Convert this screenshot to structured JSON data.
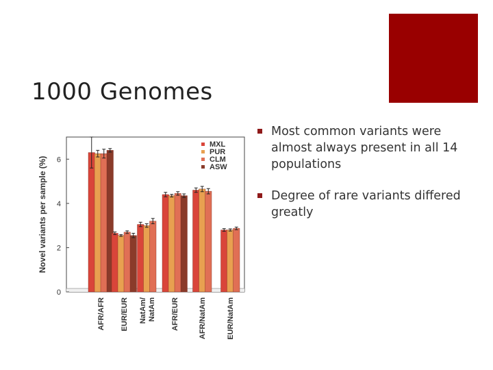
{
  "slide": {
    "title": "1000 Genomes",
    "accent_color": "#990000",
    "bullets": [
      {
        "text": "Most common variants were almost always present in all 14 populations"
      },
      {
        "text": "Degree of rare variants differed greatly"
      }
    ]
  },
  "chart_data": {
    "type": "bar",
    "title": "",
    "xlabel": "",
    "ylabel": "Novel variants per sample (%)",
    "ylim": [
      0,
      7
    ],
    "yticks": [
      0,
      2,
      4,
      6
    ],
    "grid": false,
    "legend_position": "top-right",
    "categories": [
      "AFR/AFR",
      "EUR/EUR",
      "NatAm/\nNatAm",
      "AFR/EUR",
      "AFR/NatAm",
      "EUR/NatAm"
    ],
    "series": [
      {
        "name": "MXL",
        "color": "#d9453a",
        "values": [
          6.3,
          2.65,
          3.05,
          4.4,
          4.6,
          2.8
        ],
        "errors": [
          0.7,
          0.06,
          0.1,
          0.1,
          0.1,
          0.06
        ]
      },
      {
        "name": "PUR",
        "color": "#e8a050",
        "values": [
          6.25,
          2.55,
          3.0,
          4.35,
          4.65,
          2.8
        ],
        "errors": [
          0.15,
          0.04,
          0.08,
          0.06,
          0.12,
          0.05
        ]
      },
      {
        "name": "CLM",
        "color": "#e06f55",
        "values": [
          6.25,
          2.7,
          3.2,
          4.45,
          4.55,
          2.87
        ],
        "errors": [
          0.2,
          0.06,
          0.12,
          0.08,
          0.12,
          0.06
        ]
      },
      {
        "name": "ASW",
        "color": "#8a3b2a",
        "values": [
          6.4,
          2.55,
          null,
          4.35,
          null,
          null
        ],
        "errors": [
          0.08,
          0.1,
          null,
          0.08,
          null,
          null
        ]
      }
    ]
  }
}
